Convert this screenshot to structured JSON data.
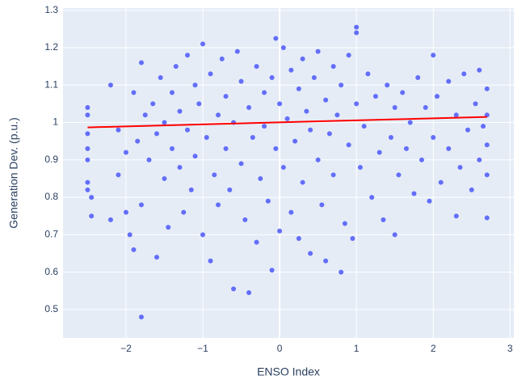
{
  "chart_data": {
    "type": "scatter",
    "x_label": "ENSO Index",
    "y_label": "Generation Dev. (p.u.)",
    "xlim": [
      -2.82,
      3.05
    ],
    "ylim": [
      0.424,
      1.306
    ],
    "xticks": [
      {
        "value": -2,
        "label": "−2"
      },
      {
        "value": -1,
        "label": "−1"
      },
      0,
      1,
      2,
      3
    ],
    "yticks": [
      0.5,
      0.6,
      0.7,
      0.8,
      0.9,
      1,
      1.1,
      1.2,
      1.3
    ],
    "grid": true,
    "zeroline": true,
    "series": [
      {
        "type": "scatter",
        "color": "#636efa",
        "x": [
          -2.5,
          -2.5,
          -2.5,
          -2.5,
          -2.5,
          -2.5,
          -2.5,
          -2.45,
          -2.45,
          -2.2,
          -2.2,
          -2.1,
          -2.1,
          -2.0,
          -2.0,
          -1.95,
          -1.9,
          -1.9,
          -1.85,
          -1.8,
          -1.8,
          -1.8,
          -1.75,
          -1.7,
          -1.65,
          -1.6,
          -1.6,
          -1.55,
          -1.5,
          -1.5,
          -1.45,
          -1.4,
          -1.4,
          -1.35,
          -1.3,
          -1.3,
          -1.25,
          -1.2,
          -1.2,
          -1.15,
          -1.1,
          -1.1,
          -1.05,
          -1.0,
          -1.0,
          -0.95,
          -0.9,
          -0.9,
          -0.85,
          -0.8,
          -0.8,
          -0.75,
          -0.7,
          -0.7,
          -0.65,
          -0.6,
          -0.6,
          -0.55,
          -0.5,
          -0.5,
          -0.45,
          -0.4,
          -0.4,
          -0.35,
          -0.3,
          -0.3,
          -0.25,
          -0.2,
          -0.2,
          -0.15,
          -0.1,
          -0.1,
          -0.05,
          -0.05,
          0.0,
          0.0,
          0.05,
          0.05,
          0.1,
          0.15,
          0.15,
          0.2,
          0.25,
          0.25,
          0.3,
          0.3,
          0.35,
          0.4,
          0.4,
          0.45,
          0.5,
          0.5,
          0.55,
          0.6,
          0.6,
          0.65,
          0.7,
          0.7,
          0.75,
          0.8,
          0.8,
          0.85,
          0.9,
          0.9,
          0.95,
          1.0,
          1.0,
          1.0,
          1.05,
          1.1,
          1.15,
          1.2,
          1.25,
          1.3,
          1.35,
          1.4,
          1.45,
          1.5,
          1.5,
          1.55,
          1.6,
          1.65,
          1.7,
          1.75,
          1.8,
          1.85,
          1.9,
          1.95,
          2.0,
          2.0,
          2.05,
          2.1,
          2.2,
          2.2,
          2.3,
          2.3,
          2.35,
          2.4,
          2.45,
          2.5,
          2.55,
          2.6,
          2.6,
          2.65,
          2.7,
          2.7,
          2.7,
          2.7,
          2.7
        ],
        "y": [
          1.04,
          1.02,
          0.97,
          0.93,
          0.9,
          0.84,
          0.82,
          0.8,
          0.75,
          1.1,
          0.74,
          0.86,
          0.98,
          0.92,
          0.76,
          0.7,
          0.66,
          1.08,
          0.95,
          1.16,
          0.48,
          0.78,
          1.02,
          0.9,
          1.05,
          0.97,
          0.64,
          1.12,
          0.85,
          1.0,
          0.72,
          1.08,
          0.93,
          1.15,
          0.88,
          1.03,
          0.76,
          1.18,
          0.98,
          0.82,
          1.1,
          0.91,
          1.05,
          1.21,
          0.7,
          0.96,
          0.63,
          1.13,
          0.86,
          1.02,
          0.78,
          1.17,
          0.93,
          1.07,
          0.82,
          0.555,
          1.0,
          1.19,
          0.89,
          1.11,
          0.74,
          0.545,
          1.04,
          0.96,
          1.15,
          0.68,
          0.85,
          1.08,
          0.99,
          0.79,
          0.605,
          1.12,
          1.225,
          0.93,
          1.05,
          0.71,
          1.2,
          0.88,
          1.01,
          0.76,
          1.14,
          0.95,
          1.09,
          0.69,
          1.17,
          0.84,
          1.03,
          0.65,
          0.98,
          1.12,
          0.9,
          1.19,
          0.78,
          1.06,
          0.63,
          0.97,
          1.15,
          0.86,
          1.02,
          0.6,
          1.1,
          0.73,
          0.94,
          1.18,
          0.69,
          1.255,
          1.24,
          1.05,
          0.88,
          0.99,
          1.13,
          0.8,
          1.07,
          0.92,
          0.74,
          1.1,
          0.96,
          0.7,
          1.04,
          0.86,
          1.08,
          0.93,
          1.0,
          0.81,
          1.12,
          0.9,
          1.04,
          0.79,
          1.18,
          0.96,
          1.07,
          0.84,
          1.11,
          0.93,
          1.02,
          0.75,
          0.88,
          1.13,
          0.98,
          0.82,
          1.05,
          1.14,
          0.9,
          0.99,
          1.09,
          0.94,
          0.86,
          0.745,
          1.02
        ]
      },
      {
        "type": "line",
        "color": "#ff0000",
        "x": [
          -2.5,
          2.7
        ],
        "y": [
          0.987,
          1.015
        ]
      }
    ]
  }
}
